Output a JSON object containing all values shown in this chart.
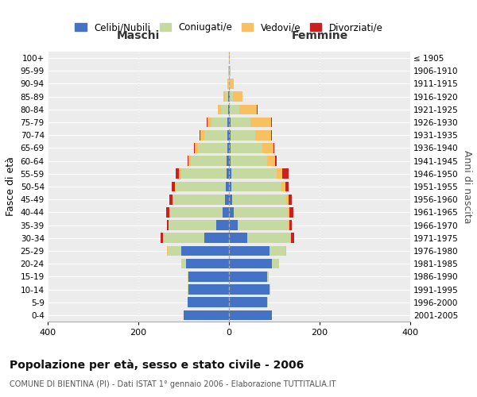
{
  "age_groups": [
    "0-4",
    "5-9",
    "10-14",
    "15-19",
    "20-24",
    "25-29",
    "30-34",
    "35-39",
    "40-44",
    "45-49",
    "50-54",
    "55-59",
    "60-64",
    "65-69",
    "70-74",
    "75-79",
    "80-84",
    "85-89",
    "90-94",
    "95-99",
    "100+"
  ],
  "birth_years": [
    "2001-2005",
    "1996-2000",
    "1991-1995",
    "1986-1990",
    "1981-1985",
    "1976-1980",
    "1971-1975",
    "1966-1970",
    "1961-1965",
    "1956-1960",
    "1951-1955",
    "1946-1950",
    "1941-1945",
    "1936-1940",
    "1931-1935",
    "1926-1930",
    "1921-1925",
    "1916-1920",
    "1911-1915",
    "1906-1910",
    "≤ 1905"
  ],
  "maschi_celibi": [
    100,
    92,
    90,
    90,
    95,
    105,
    55,
    28,
    14,
    8,
    7,
    6,
    5,
    4,
    4,
    3,
    2,
    1,
    0,
    0,
    0
  ],
  "maschi_coniugati": [
    0,
    0,
    1,
    2,
    10,
    30,
    90,
    105,
    115,
    115,
    110,
    100,
    80,
    65,
    50,
    35,
    15,
    7,
    2,
    1,
    0
  ],
  "maschi_vedovi": [
    0,
    0,
    0,
    0,
    0,
    1,
    1,
    1,
    2,
    2,
    3,
    4,
    5,
    7,
    10,
    10,
    8,
    5,
    1,
    0,
    0
  ],
  "maschi_divorziati": [
    0,
    0,
    0,
    0,
    1,
    1,
    5,
    3,
    8,
    7,
    7,
    8,
    2,
    1,
    1,
    1,
    0,
    0,
    0,
    0,
    0
  ],
  "femmine_celibi": [
    95,
    85,
    90,
    85,
    95,
    90,
    40,
    20,
    10,
    7,
    6,
    5,
    4,
    3,
    3,
    3,
    2,
    1,
    0,
    0,
    0
  ],
  "femmine_coniugati": [
    0,
    1,
    2,
    3,
    15,
    35,
    95,
    110,
    120,
    120,
    110,
    100,
    80,
    70,
    55,
    45,
    20,
    8,
    2,
    1,
    0
  ],
  "femmine_vedovi": [
    0,
    0,
    0,
    0,
    0,
    1,
    2,
    3,
    4,
    5,
    8,
    12,
    18,
    25,
    35,
    45,
    40,
    20,
    8,
    3,
    1
  ],
  "femmine_divorziati": [
    0,
    0,
    0,
    0,
    0,
    1,
    6,
    6,
    8,
    7,
    8,
    15,
    3,
    2,
    1,
    1,
    1,
    1,
    1,
    0,
    0
  ],
  "colors": {
    "celibi": "#4472c4",
    "coniugati": "#c5d9a0",
    "vedovi": "#f8c060",
    "divorziati": "#cc2020"
  },
  "title": "Popolazione per età, sesso e stato civile - 2006",
  "subtitle": "COMUNE DI BIENTINA (PI) - Dati ISTAT 1° gennaio 2006 - Elaborazione TUTTITALIA.IT",
  "ylabel_left": "Fasce di età",
  "ylabel_right": "Anni di nascita",
  "xlabel_left": "Maschi",
  "xlabel_right": "Femmine",
  "xlim": 400,
  "plot_bg": "#ececec",
  "background_color": "#ffffff",
  "grid_color": "#ffffff",
  "legend_labels": [
    "Celibi/Nubili",
    "Coniugati/e",
    "Vedovi/e",
    "Divorziati/e"
  ]
}
